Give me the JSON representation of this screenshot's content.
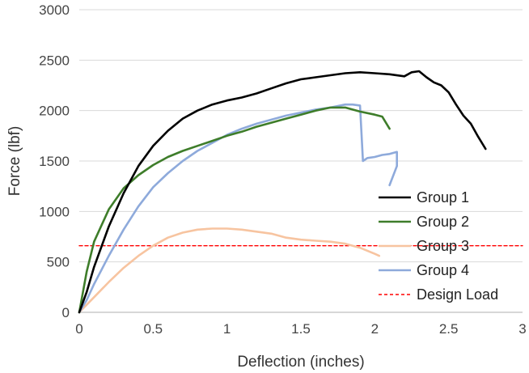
{
  "chart_data": {
    "type": "line",
    "xlabel": "Deflection (inches)",
    "ylabel": "Force (lbf)",
    "xlim": [
      0,
      3
    ],
    "ylim": [
      0,
      3000
    ],
    "x_ticks": [
      "0",
      "0.5",
      "1",
      "1.5",
      "2",
      "2.5",
      "3"
    ],
    "y_ticks": [
      "0",
      "500",
      "1000",
      "1500",
      "2000",
      "2500",
      "3000"
    ],
    "grid": "horizontal",
    "legend_position": "right",
    "series": [
      {
        "name": "Group 1",
        "color": "#000000",
        "x": [
          0,
          0.05,
          0.1,
          0.2,
          0.3,
          0.4,
          0.5,
          0.6,
          0.7,
          0.8,
          0.9,
          1.0,
          1.1,
          1.2,
          1.3,
          1.4,
          1.5,
          1.6,
          1.7,
          1.8,
          1.9,
          2.0,
          2.1,
          2.2,
          2.25,
          2.3,
          2.35,
          2.4,
          2.45,
          2.5,
          2.55,
          2.6,
          2.65,
          2.7,
          2.75
        ],
        "y": [
          0,
          200,
          450,
          850,
          1180,
          1450,
          1650,
          1800,
          1920,
          2000,
          2060,
          2100,
          2130,
          2170,
          2220,
          2270,
          2310,
          2330,
          2350,
          2370,
          2380,
          2370,
          2360,
          2340,
          2380,
          2390,
          2330,
          2280,
          2250,
          2180,
          2060,
          1950,
          1870,
          1740,
          1620
        ]
      },
      {
        "name": "Group 2",
        "color": "#3e7d2a",
        "x": [
          0,
          0.05,
          0.1,
          0.2,
          0.3,
          0.4,
          0.5,
          0.6,
          0.7,
          0.8,
          0.9,
          1.0,
          1.1,
          1.2,
          1.3,
          1.4,
          1.5,
          1.6,
          1.7,
          1.8,
          1.9,
          2.0,
          2.05,
          2.1
        ],
        "y": [
          0,
          400,
          700,
          1020,
          1230,
          1360,
          1460,
          1540,
          1600,
          1650,
          1700,
          1750,
          1790,
          1840,
          1880,
          1920,
          1960,
          2000,
          2030,
          2030,
          1990,
          1960,
          1940,
          1820
        ]
      },
      {
        "name": "Group 3",
        "color": "#f7c4a0",
        "x": [
          0,
          0.1,
          0.2,
          0.3,
          0.4,
          0.5,
          0.6,
          0.7,
          0.8,
          0.9,
          1.0,
          1.1,
          1.2,
          1.3,
          1.4,
          1.5,
          1.6,
          1.7,
          1.8,
          1.9,
          2.0,
          2.03
        ],
        "y": [
          0,
          150,
          300,
          440,
          560,
          660,
          740,
          790,
          820,
          830,
          830,
          820,
          800,
          780,
          740,
          720,
          710,
          700,
          680,
          640,
          580,
          560
        ]
      },
      {
        "name": "Group 4",
        "color": "#8eaadb",
        "x": [
          0,
          0.05,
          0.1,
          0.2,
          0.3,
          0.4,
          0.5,
          0.6,
          0.7,
          0.8,
          0.9,
          1.0,
          1.1,
          1.2,
          1.3,
          1.4,
          1.5,
          1.6,
          1.7,
          1.8,
          1.85,
          1.9,
          1.92,
          1.95,
          2.0,
          2.05,
          2.1,
          2.15,
          2.15,
          2.1
        ],
        "y": [
          0,
          120,
          280,
          560,
          820,
          1050,
          1240,
          1380,
          1500,
          1600,
          1680,
          1760,
          1820,
          1870,
          1910,
          1950,
          1980,
          2010,
          2030,
          2060,
          2060,
          2050,
          1500,
          1530,
          1540,
          1560,
          1570,
          1590,
          1450,
          1260
        ]
      },
      {
        "name": "Design Load",
        "color": "#ff0000",
        "dashed": true,
        "x": [
          0,
          3
        ],
        "y": [
          660,
          660
        ]
      }
    ]
  }
}
